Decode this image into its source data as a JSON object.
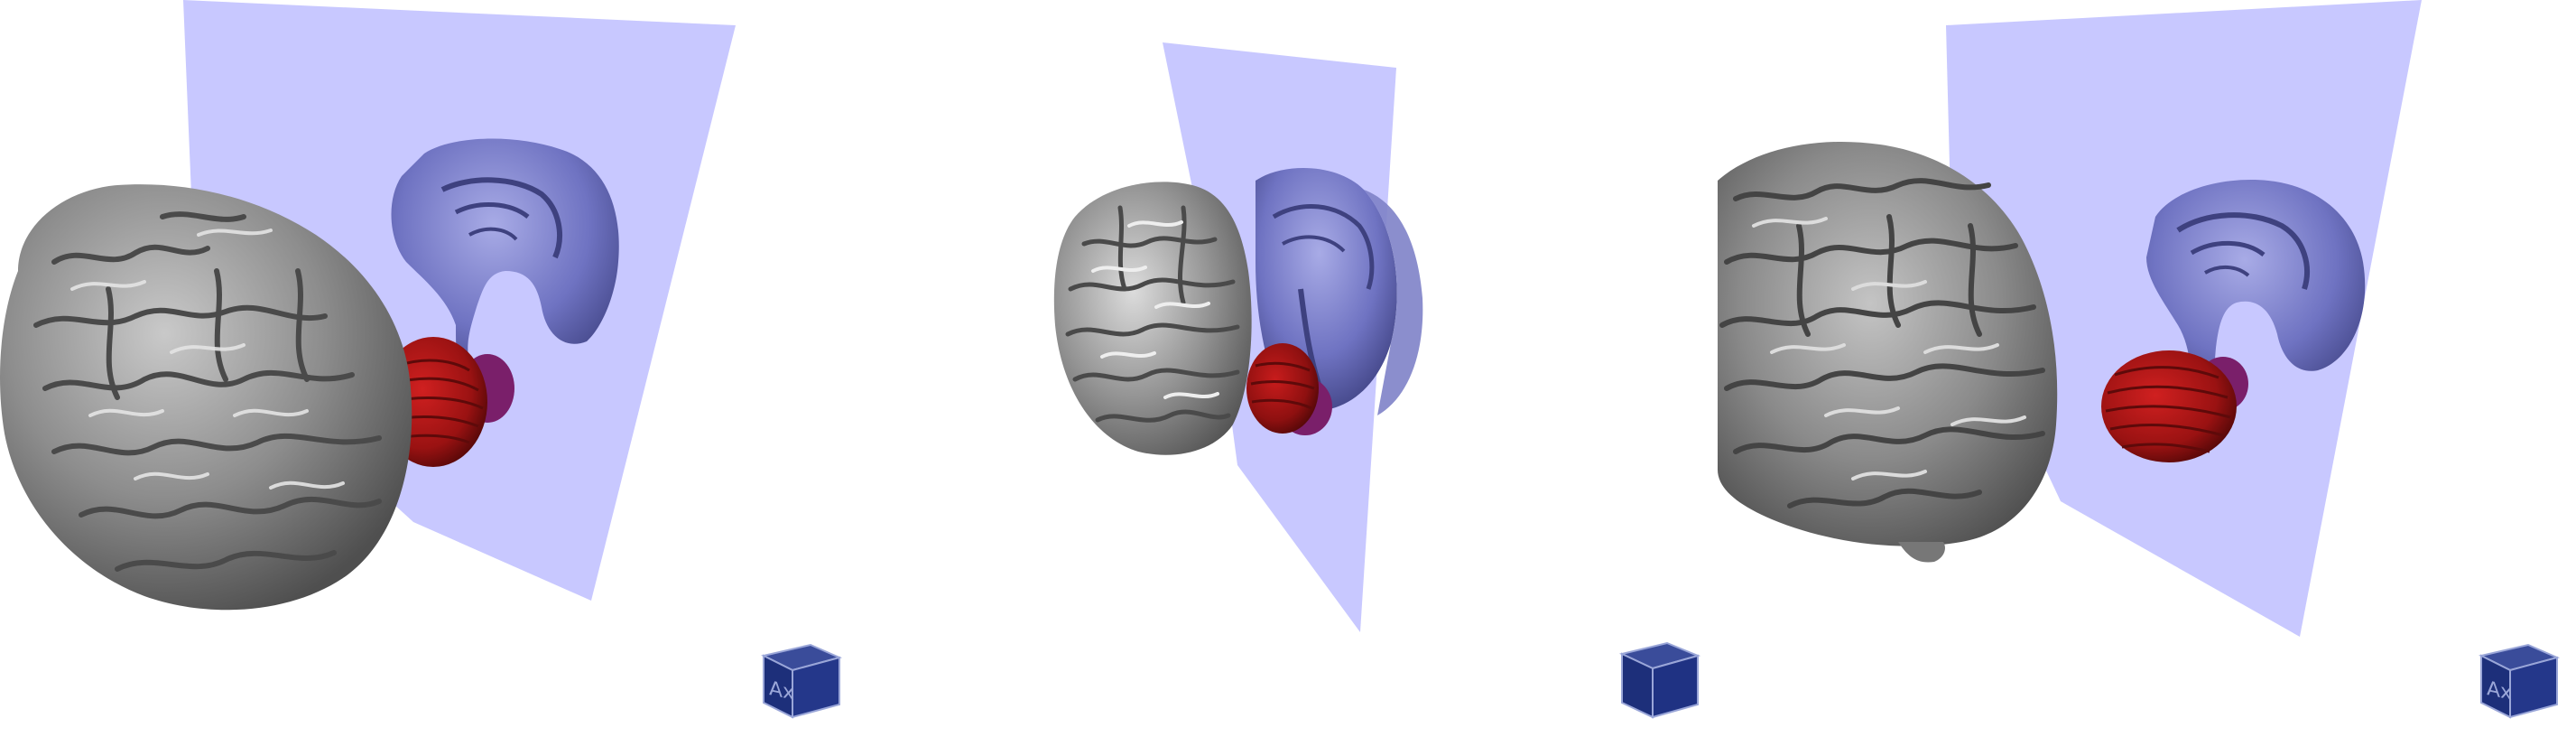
{
  "app": {
    "type": "3D medical viewer (triple view)"
  },
  "colors": {
    "background": "#ffffff",
    "plane": "#c8c8ff",
    "cortex": "#8a8a8a",
    "cortex_highlight": "#d8d8d8",
    "cortex_shadow": "#4a4a4a",
    "midsagittal": "#6b6fbe",
    "midsagittal_shadow": "#3e417f",
    "cerebellum": "#a01414",
    "cerebellum_dark": "#5e0a0a",
    "brainstem": "#7a1f6a",
    "cube_fill": "#1d2f7a",
    "cube_edge": "#9aa6d8"
  },
  "viewports": [
    {
      "name": "left",
      "cube": {
        "label": "Ax",
        "icon": "orientation-cube-icon"
      }
    },
    {
      "name": "center",
      "cube": {
        "label": "",
        "icon": "orientation-cube-icon"
      }
    },
    {
      "name": "right",
      "cube": {
        "label": "Ax",
        "icon": "orientation-cube-icon"
      }
    }
  ]
}
